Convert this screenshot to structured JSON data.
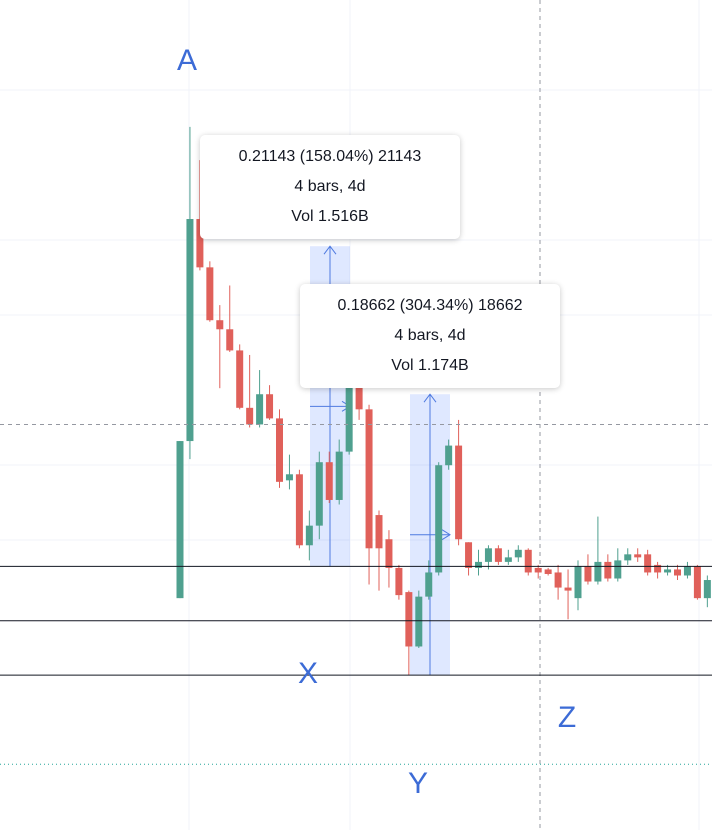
{
  "chart_data": {
    "type": "candlestick",
    "ylim": [
      -0.0405,
      0.509
    ],
    "up_color": "#4fa08f",
    "down_color": "#e0605a",
    "open": [
      0.113,
      0.217,
      0.364,
      0.332,
      0.297,
      0.291,
      0.277,
      0.239,
      0.228,
      0.248,
      0.232,
      0.191,
      0.195,
      0.148,
      0.161,
      0.203,
      0.178,
      0.21,
      0.269,
      0.238,
      0.168,
      0.152,
      0.133,
      0.117,
      0.081,
      0.114,
      0.13,
      0.201,
      0.214,
      0.15,
      0.133,
      0.137,
      0.146,
      0.137,
      0.14,
      0.145,
      0.133,
      0.132,
      0.13,
      0.12,
      0.113,
      0.134,
      0.124,
      0.137,
      0.126,
      0.138,
      0.142,
      0.142,
      0.135,
      0.13,
      0.132,
      0.128,
      0.134,
      0.113
    ],
    "high": [
      0.217,
      0.425,
      0.403,
      0.336,
      0.307,
      0.32,
      0.281,
      0.274,
      0.264,
      0.254,
      0.238,
      0.208,
      0.198,
      0.171,
      0.21,
      0.21,
      0.218,
      0.31,
      0.317,
      0.241,
      0.171,
      0.158,
      0.135,
      0.118,
      0.118,
      0.138,
      0.203,
      0.218,
      0.231,
      0.15,
      0.145,
      0.148,
      0.148,
      0.145,
      0.148,
      0.146,
      0.135,
      0.133,
      0.135,
      0.132,
      0.138,
      0.142,
      0.167,
      0.142,
      0.146,
      0.146,
      0.146,
      0.145,
      0.137,
      0.135,
      0.135,
      0.137,
      0.135,
      0.128
    ],
    "low": [
      0.113,
      0.205,
      0.33,
      0.296,
      0.252,
      0.276,
      0.238,
      0.226,
      0.226,
      0.231,
      0.186,
      0.185,
      0.146,
      0.138,
      0.152,
      0.176,
      0.175,
      0.208,
      0.231,
      0.122,
      0.118,
      0.12,
      0.112,
      0.062,
      0.08,
      0.112,
      0.128,
      0.198,
      0.148,
      0.128,
      0.128,
      0.132,
      0.135,
      0.135,
      0.137,
      0.128,
      0.126,
      0.128,
      0.112,
      0.099,
      0.105,
      0.122,
      0.122,
      0.124,
      0.124,
      0.135,
      0.137,
      0.128,
      0.126,
      0.128,
      0.125,
      0.126,
      0.112,
      0.107
    ],
    "close": [
      0.217,
      0.364,
      0.332,
      0.297,
      0.291,
      0.277,
      0.239,
      0.228,
      0.248,
      0.232,
      0.19,
      0.195,
      0.148,
      0.161,
      0.203,
      0.178,
      0.21,
      0.269,
      0.238,
      0.146,
      0.146,
      0.133,
      0.115,
      0.081,
      0.114,
      0.13,
      0.201,
      0.214,
      0.152,
      0.133,
      0.137,
      0.146,
      0.137,
      0.14,
      0.145,
      0.13,
      0.13,
      0.129,
      0.12,
      0.118,
      0.134,
      0.124,
      0.137,
      0.126,
      0.138,
      0.142,
      0.14,
      0.13,
      0.13,
      0.132,
      0.128,
      0.134,
      0.113,
      0.125
    ],
    "horizontal_lines": [
      0.134,
      0.098,
      0.062
    ],
    "crosshair_price": 0.228,
    "dotted_line": 0.003,
    "measurements": [
      {
        "from": 0.134,
        "to": 0.346,
        "lines": [
          "0.21143 (158.04%) 21143",
          "4 bars, 4d",
          "Vol 1.516B"
        ]
      },
      {
        "from": 0.062,
        "to": 0.248,
        "lines": [
          "0.18662 (304.34%) 18662",
          "4 bars, 4d",
          "Vol 1.174B"
        ]
      }
    ],
    "annotations": [
      "A",
      "X",
      "Y",
      "Z"
    ]
  }
}
